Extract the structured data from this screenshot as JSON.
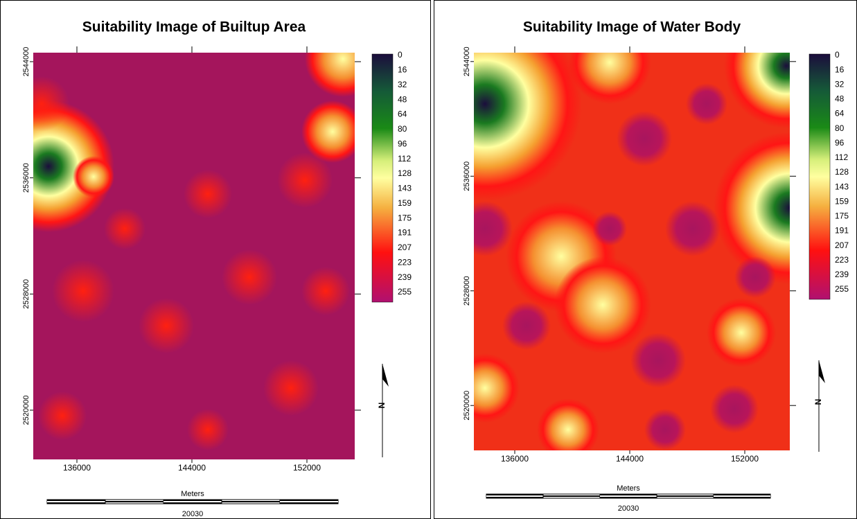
{
  "panels": [
    {
      "title": "Suitability Image of Builtup Area",
      "xlim": [
        132964,
        155325
      ],
      "ylim": [
        2516609,
        2544621
      ],
      "xticks": [
        136000,
        144000,
        152000
      ],
      "yticks": [
        2544000,
        2536000,
        2528000,
        2520000
      ],
      "legend": [
        0,
        16,
        32,
        48,
        64,
        80,
        96,
        112,
        128,
        143,
        159,
        175,
        191,
        207,
        223,
        239,
        255
      ],
      "north": "N",
      "scale_unit": "Meters",
      "scale_label": "20030"
    },
    {
      "title": "Suitability Image of Water Body",
      "xlim": [
        133157,
        155133
      ],
      "ylim": [
        2516867,
        2544620
      ],
      "xticks": [
        136000,
        144000,
        152000
      ],
      "yticks": [
        2544000,
        2536000,
        2528000,
        2520000
      ],
      "legend": [
        0,
        16,
        32,
        48,
        64,
        80,
        96,
        112,
        128,
        143,
        159,
        175,
        191,
        207,
        223,
        239,
        255
      ],
      "north": "N",
      "scale_unit": "Meters",
      "scale_label": "20030"
    }
  ]
}
